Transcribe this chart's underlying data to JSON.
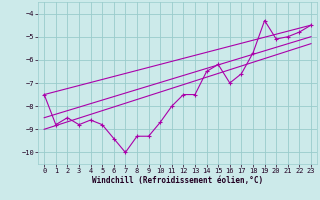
{
  "title": "",
  "xlabel": "Windchill (Refroidissement éolien,°C)",
  "bg_color": "#cceaea",
  "line_color": "#aa00aa",
  "grid_color": "#99cccc",
  "xlim": [
    -0.5,
    23.5
  ],
  "ylim": [
    -10.5,
    -3.5
  ],
  "xticks": [
    0,
    1,
    2,
    3,
    4,
    5,
    6,
    7,
    8,
    9,
    10,
    11,
    12,
    13,
    14,
    15,
    16,
    17,
    18,
    19,
    20,
    21,
    22,
    23
  ],
  "yticks": [
    -10,
    -9,
    -8,
    -7,
    -6,
    -5,
    -4
  ],
  "data_line": [
    [
      0,
      -7.5
    ],
    [
      1,
      -8.8
    ],
    [
      2,
      -8.5
    ],
    [
      3,
      -8.8
    ],
    [
      4,
      -8.6
    ],
    [
      5,
      -8.8
    ],
    [
      6,
      -9.4
    ],
    [
      7,
      -10.0
    ],
    [
      8,
      -9.3
    ],
    [
      9,
      -9.3
    ],
    [
      10,
      -8.7
    ],
    [
      11,
      -8.0
    ],
    [
      12,
      -7.5
    ],
    [
      13,
      -7.5
    ],
    [
      14,
      -6.5
    ],
    [
      15,
      -6.2
    ],
    [
      16,
      -7.0
    ],
    [
      17,
      -6.6
    ],
    [
      18,
      -5.7
    ],
    [
      19,
      -4.3
    ],
    [
      20,
      -5.1
    ],
    [
      21,
      -5.0
    ],
    [
      22,
      -4.8
    ],
    [
      23,
      -4.5
    ]
  ],
  "line1": [
    [
      0,
      -7.5
    ],
    [
      23,
      -4.5
    ]
  ],
  "line2": [
    [
      0,
      -8.5
    ],
    [
      23,
      -5.0
    ]
  ],
  "line3": [
    [
      0,
      -9.0
    ],
    [
      23,
      -5.3
    ]
  ]
}
